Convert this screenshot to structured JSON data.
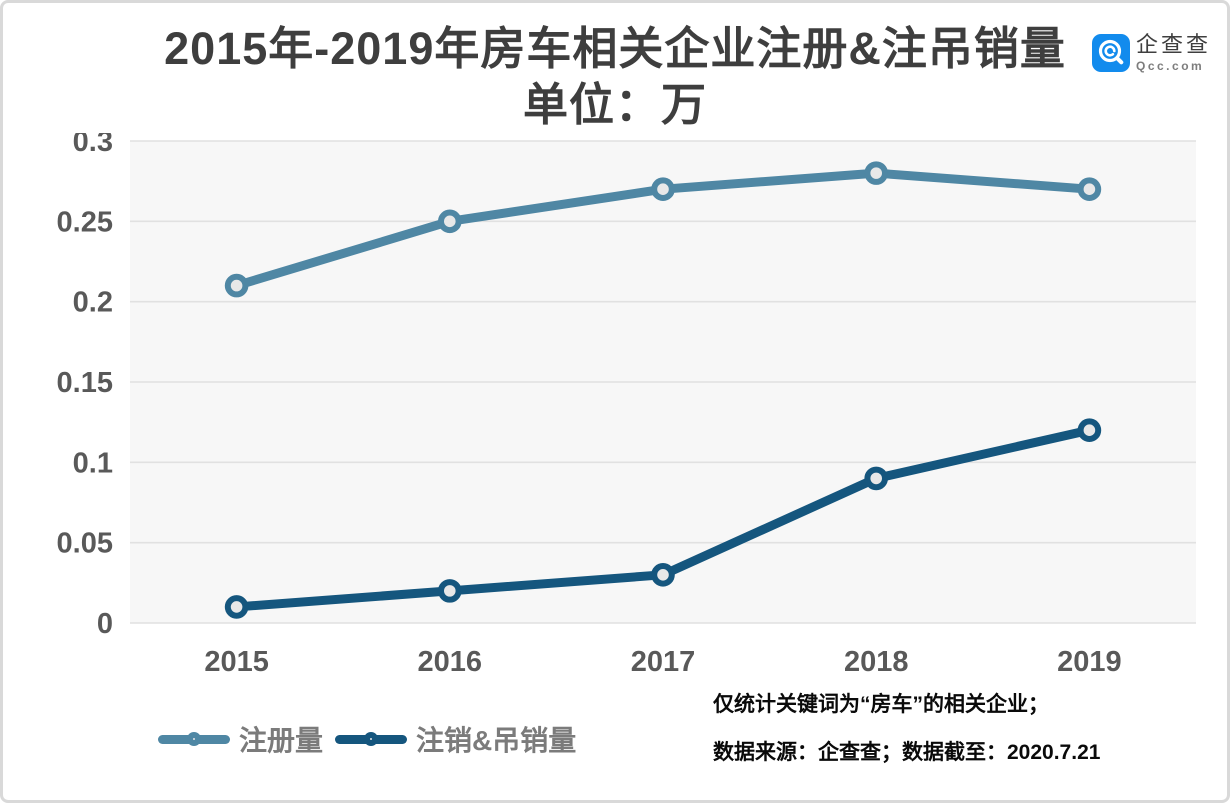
{
  "header": {
    "title": "2015年-2019年房车相关企业注册&注吊销量",
    "subtitle": "单位：万"
  },
  "logo": {
    "name": "企查查",
    "domain": "Qcc.com",
    "brand_color": "#128bed"
  },
  "chart_data": {
    "type": "line",
    "title": "2015年-2019年房车相关企业注册&注吊销量",
    "unit_label": "单位：万",
    "categories": [
      "2015",
      "2016",
      "2017",
      "2018",
      "2019"
    ],
    "series": [
      {
        "name": "注册量",
        "color": "#4f87a4",
        "values": [
          0.21,
          0.25,
          0.27,
          0.28,
          0.27
        ]
      },
      {
        "name": "注销&吊销量",
        "color": "#15567e",
        "values": [
          0.01,
          0.02,
          0.03,
          0.09,
          0.12
        ]
      }
    ],
    "xlabel": "",
    "ylabel": "万",
    "ylim": [
      0,
      0.3
    ],
    "yticks": [
      0,
      0.05,
      0.1,
      0.15,
      0.2,
      0.25,
      0.3
    ],
    "ytick_labels": [
      "0",
      "0.05",
      "0.1",
      "0.15",
      "0.2",
      "0.25",
      "0.3"
    ],
    "grid": true,
    "legend_position": "bottom-left",
    "plot_bg": "#f7f7f7",
    "grid_color": "#e1e1e1",
    "marker_fill": "#e8e8e8",
    "tick_color": "#595959"
  },
  "legend": {
    "items": [
      {
        "label": "注册量",
        "color": "#4f87a4"
      },
      {
        "label": "注销&吊销量",
        "color": "#15567e"
      }
    ]
  },
  "footnotes": {
    "line1": "仅统计关键词为“房车”的相关企业；",
    "line2": "数据来源：企查查；数据截至：2020.7.21"
  }
}
